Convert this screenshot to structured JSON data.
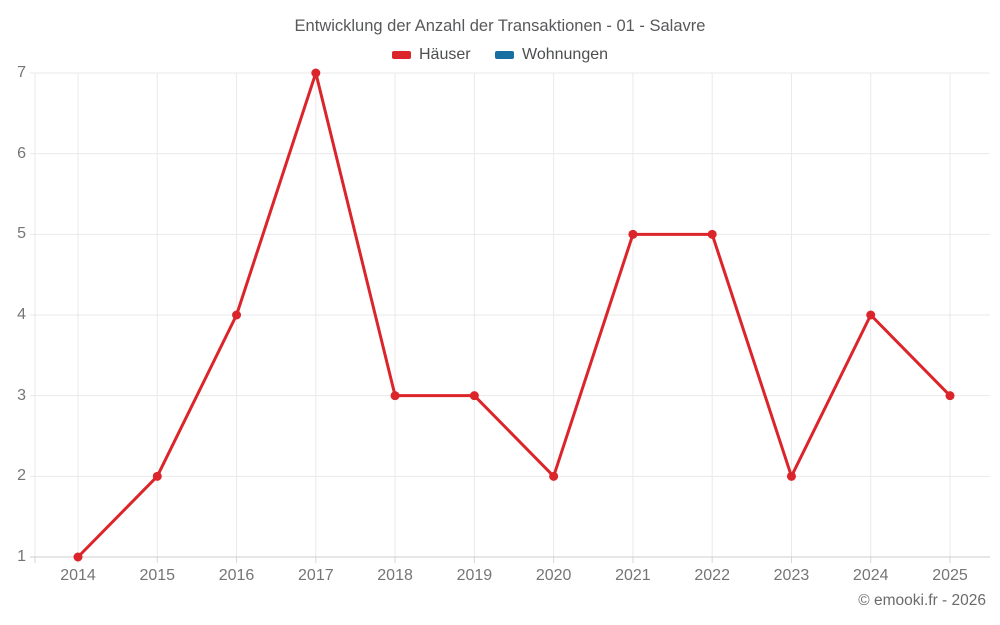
{
  "chart": {
    "title": "Entwicklung der Anzahl der Transaktionen - 01 - Salavre"
  },
  "legend": {
    "items": [
      {
        "label": "Häuser",
        "color": "#db252b"
      },
      {
        "label": "Wohnungen",
        "color": "#176fa1"
      }
    ],
    "position": "top"
  },
  "footer": {
    "copyright": "© emooki.fr - 2026"
  },
  "colors": {
    "series_red": "#db252b",
    "series_blue": "#176fa1",
    "gridline": "#e9e9e9",
    "axis_line": "#cfcfcf",
    "tick": "#d6d6d6",
    "axis_text": "#757575",
    "title_text": "#58595b",
    "background": "#ffffff"
  },
  "chart_data": {
    "type": "line",
    "title": "Entwicklung der Anzahl der Transaktionen - 01 - Salavre",
    "categories": [
      "2014",
      "2015",
      "2016",
      "2017",
      "2018",
      "2019",
      "2020",
      "2021",
      "2022",
      "2023",
      "2024",
      "2025"
    ],
    "series": [
      {
        "name": "Häuser",
        "color": "#db252b",
        "marker": "circle",
        "values": [
          1,
          2,
          4,
          7,
          3,
          3,
          2,
          5,
          5,
          2,
          4,
          3
        ]
      },
      {
        "name": "Wohnungen",
        "color": "#176fa1",
        "marker": "circle",
        "values": []
      }
    ],
    "xlabel": "",
    "ylabel": "",
    "ylim": [
      1,
      7
    ],
    "yticks": [
      1,
      2,
      3,
      4,
      5,
      6,
      7
    ],
    "grid": true,
    "legend_position": "top"
  }
}
